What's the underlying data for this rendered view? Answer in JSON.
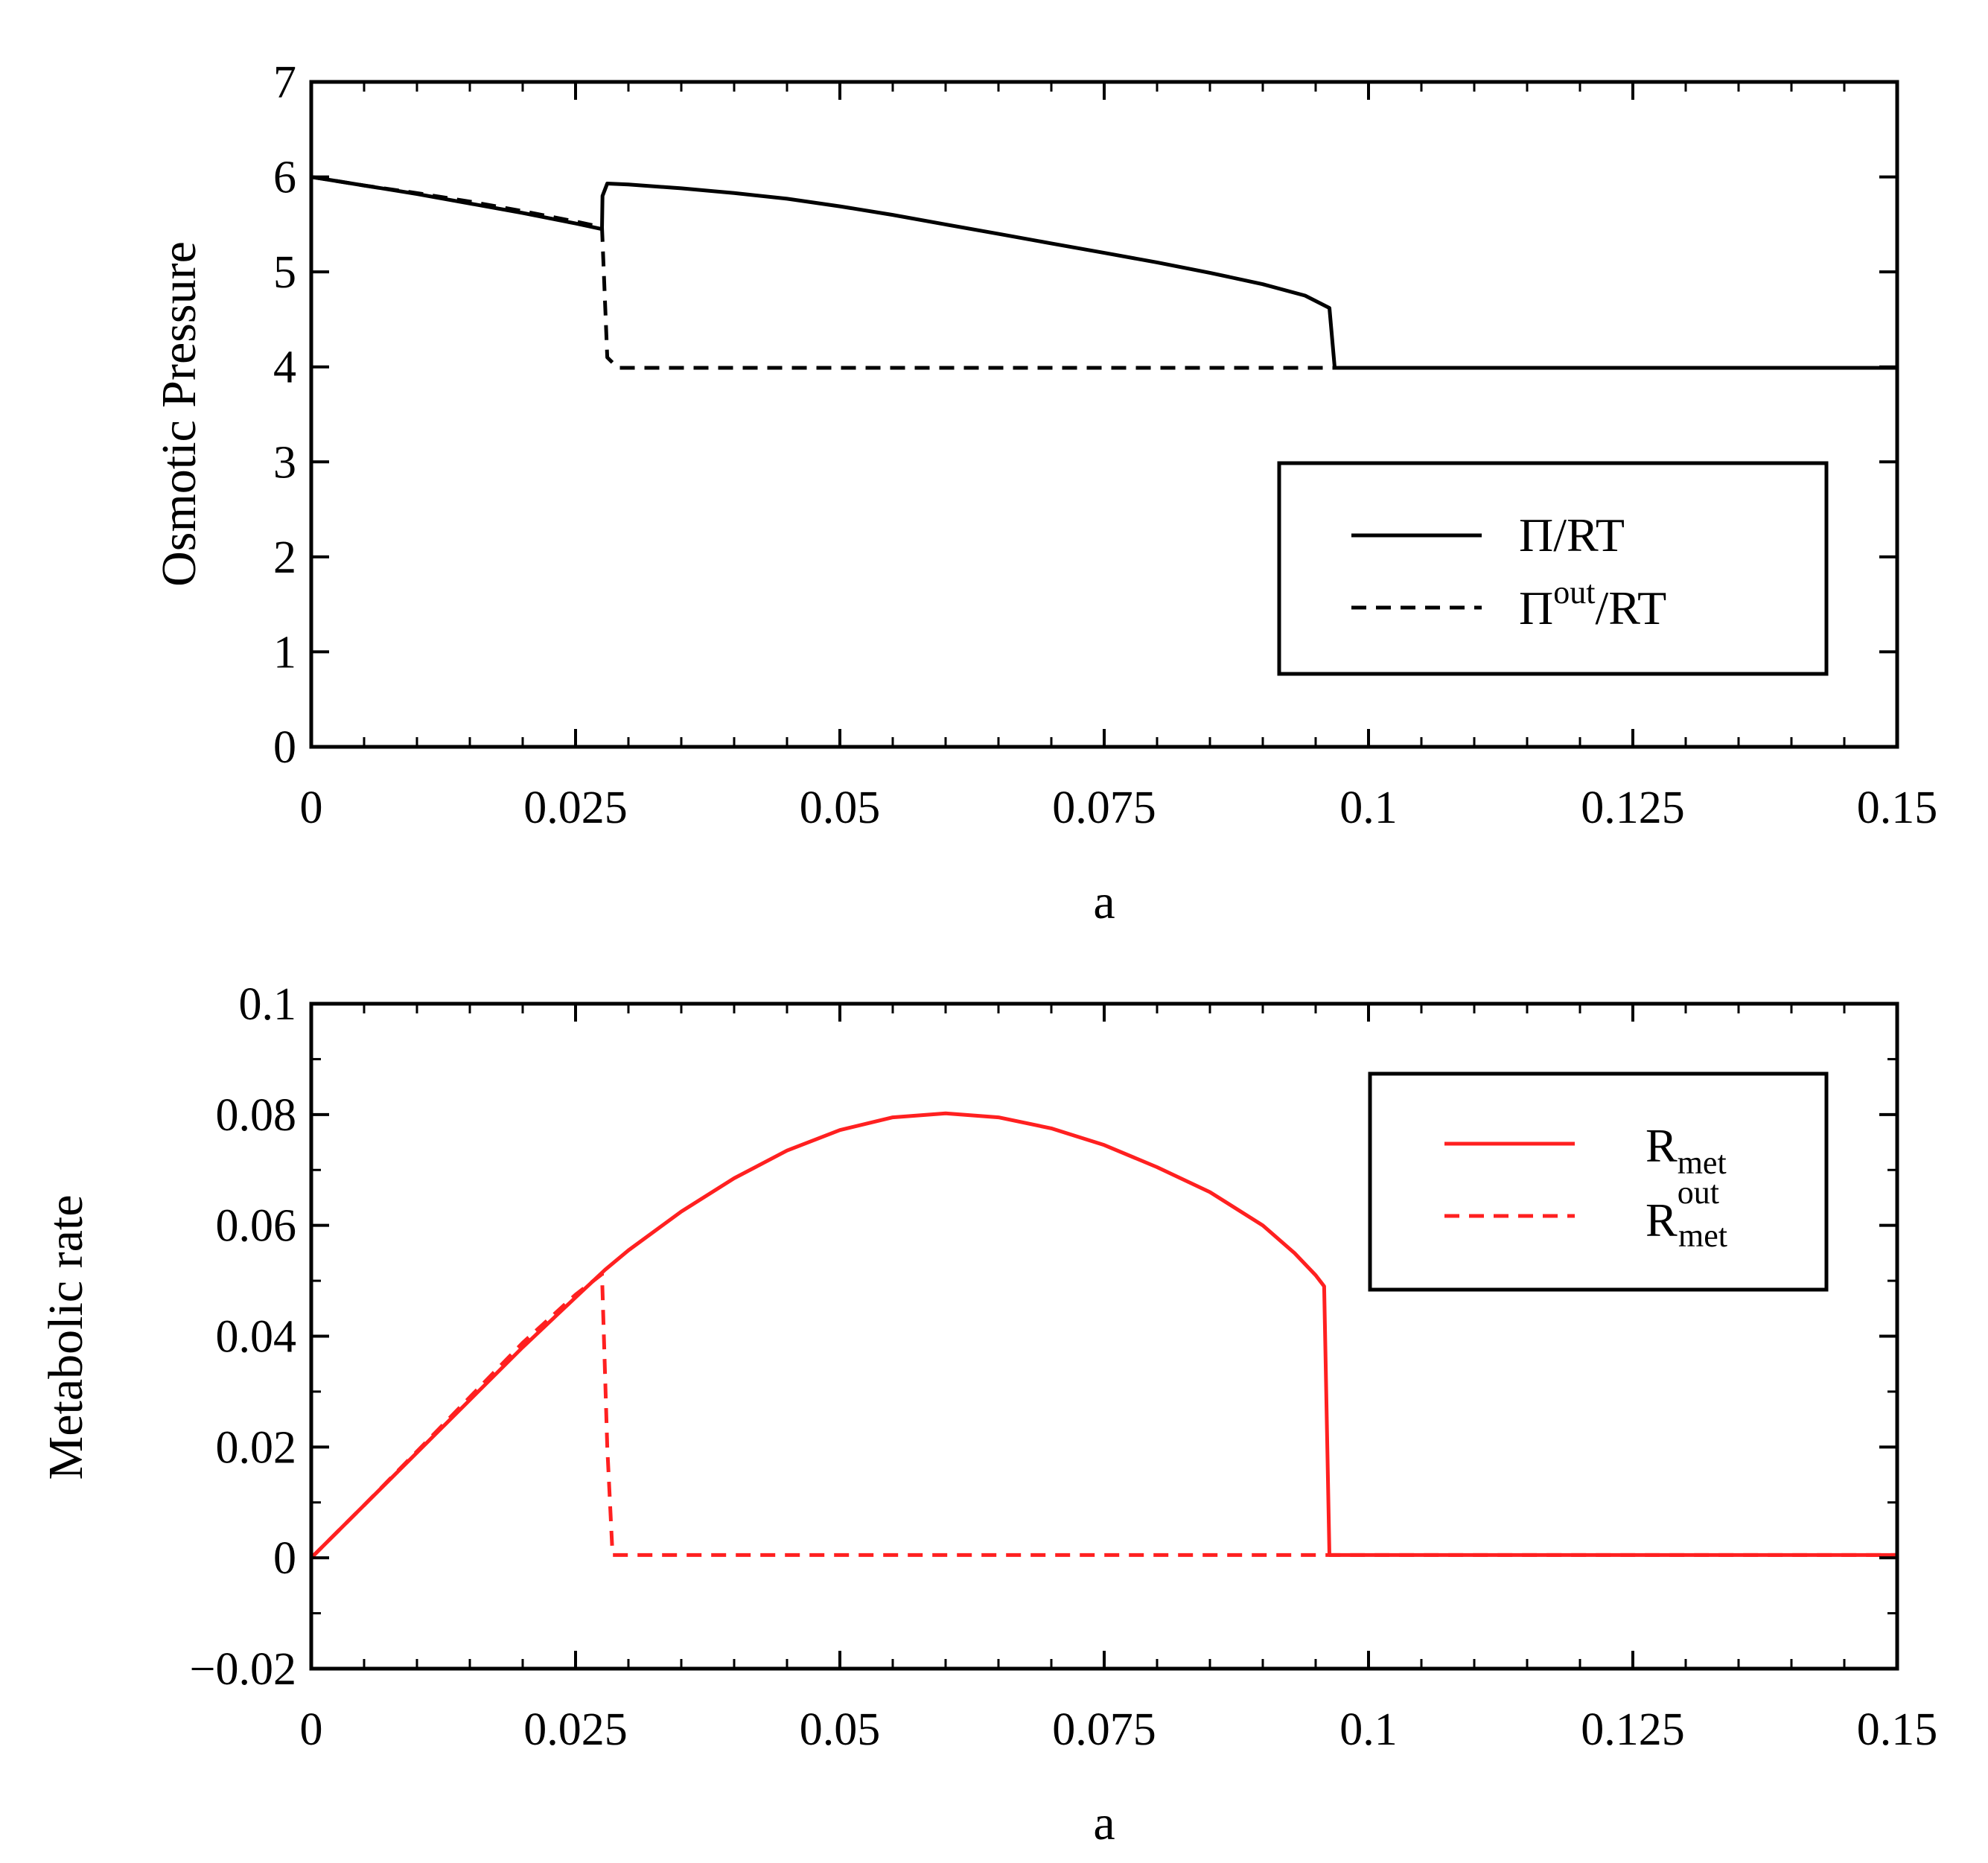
{
  "chart_data": [
    {
      "type": "line",
      "xlabel": "a",
      "ylabel": "Osmotic Pressure",
      "xlim": [
        0,
        0.15
      ],
      "ylim": [
        0,
        7
      ],
      "x_ticks": [
        0,
        0.025,
        0.05,
        0.075,
        0.1,
        0.125,
        0.15
      ],
      "x_tick_labels": [
        "0",
        "0.025",
        "0.05",
        "0.075",
        "0.1",
        "0.125",
        "0.15"
      ],
      "y_ticks": [
        0,
        1,
        2,
        3,
        4,
        5,
        6,
        7
      ],
      "y_tick_labels": [
        "0",
        "1",
        "2",
        "3",
        "4",
        "5",
        "6",
        "7"
      ],
      "legend_position": "center-right",
      "color": "#000000",
      "series": [
        {
          "name": "Π/RT",
          "legend_main": "Π/RT",
          "legend_sup": "",
          "legend_tail": "",
          "style": "solid",
          "x": [
            0,
            0.005,
            0.01,
            0.015,
            0.02,
            0.025,
            0.0275,
            0.02755,
            0.028,
            0.03,
            0.035,
            0.04,
            0.045,
            0.05,
            0.055,
            0.06,
            0.065,
            0.07,
            0.075,
            0.08,
            0.085,
            0.09,
            0.094,
            0.0963,
            0.0968,
            0.1,
            0.125,
            0.15
          ],
          "y": [
            6.0,
            5.91,
            5.82,
            5.72,
            5.62,
            5.51,
            5.45,
            5.8,
            5.93,
            5.92,
            5.88,
            5.83,
            5.77,
            5.69,
            5.6,
            5.5,
            5.4,
            5.3,
            5.2,
            5.1,
            4.99,
            4.87,
            4.75,
            4.62,
            3.99,
            3.99,
            3.99,
            3.99
          ]
        },
        {
          "name": "Πout/RT",
          "legend_main": "Π",
          "legend_sup": "out",
          "legend_tail": "/RT",
          "style": "dashed",
          "x": [
            0,
            0.005,
            0.01,
            0.015,
            0.02,
            0.025,
            0.0275,
            0.028,
            0.029,
            0.05,
            0.075,
            0.1,
            0.125,
            0.15
          ],
          "y": [
            6.0,
            5.91,
            5.83,
            5.74,
            5.64,
            5.53,
            5.47,
            4.1,
            3.99,
            3.99,
            3.99,
            3.99,
            3.99,
            3.99
          ]
        }
      ]
    },
    {
      "type": "line",
      "xlabel": "a",
      "ylabel": "Metabolic rate",
      "xlim": [
        0,
        0.15
      ],
      "ylim": [
        -0.02,
        0.1
      ],
      "x_ticks": [
        0,
        0.025,
        0.05,
        0.075,
        0.1,
        0.125,
        0.15
      ],
      "x_tick_labels": [
        "0",
        "0.025",
        "0.05",
        "0.075",
        "0.1",
        "0.125",
        "0.15"
      ],
      "y_ticks": [
        -0.02,
        0,
        0.02,
        0.04,
        0.06,
        0.08,
        0.1
      ],
      "y_tick_labels": [
        "−0.02",
        "0",
        "0.02",
        "0.04",
        "0.06",
        "0.08",
        "0.1"
      ],
      "legend_position": "top-right",
      "color": "#ff2020",
      "series": [
        {
          "name": "Rmet",
          "legend_main": "R",
          "legend_sup": "",
          "legend_sub": "met",
          "style": "solid",
          "x": [
            0,
            0.005,
            0.01,
            0.015,
            0.02,
            0.025,
            0.0278,
            0.03,
            0.035,
            0.04,
            0.045,
            0.05,
            0.055,
            0.06,
            0.065,
            0.07,
            0.075,
            0.08,
            0.085,
            0.09,
            0.093,
            0.095,
            0.0958,
            0.096,
            0.0963,
            0.1,
            0.125,
            0.15
          ],
          "y": [
            0.0,
            0.0095,
            0.019,
            0.0285,
            0.038,
            0.047,
            0.052,
            0.0555,
            0.0625,
            0.0685,
            0.0735,
            0.0772,
            0.0795,
            0.0802,
            0.0795,
            0.0775,
            0.0745,
            0.0705,
            0.066,
            0.06,
            0.055,
            0.051,
            0.049,
            0.03,
            0.0005,
            0.0005,
            0.0005,
            0.0005
          ]
        },
        {
          "name": "Rmet out",
          "legend_main": "R",
          "legend_sup": "out",
          "legend_sub": "met",
          "style": "dashed",
          "x": [
            0,
            0.005,
            0.01,
            0.015,
            0.02,
            0.025,
            0.0275,
            0.028,
            0.0285,
            0.05,
            0.075,
            0.1,
            0.125,
            0.15
          ],
          "y": [
            0.0,
            0.0095,
            0.0192,
            0.029,
            0.0388,
            0.0475,
            0.0512,
            0.02,
            0.0005,
            0.0005,
            0.0005,
            0.0005,
            0.0005,
            0.0005
          ]
        }
      ]
    }
  ]
}
